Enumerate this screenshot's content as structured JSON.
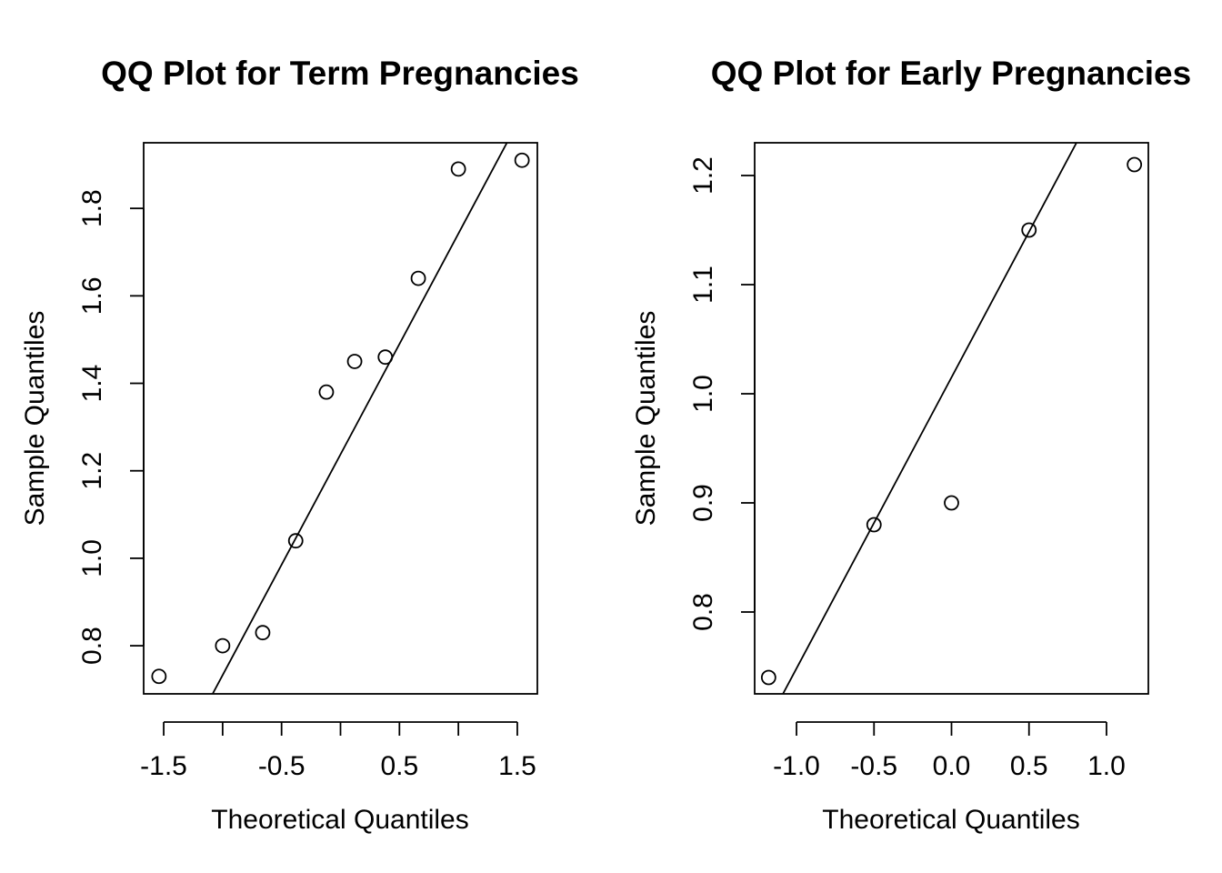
{
  "chart_data": [
    {
      "type": "scatter",
      "subtype": "qq-plot",
      "title": "QQ Plot for Term Pregnancies",
      "xlabel": "Theoretical Quantiles",
      "ylabel": "Sample Quantiles",
      "xlim": [
        -1.67,
        1.67
      ],
      "ylim": [
        0.69,
        1.95
      ],
      "x_ticks": [
        -1.5,
        -1.0,
        -0.5,
        0.0,
        0.5,
        1.0,
        1.5
      ],
      "x_tick_labels": [
        "-1.5",
        "",
        "-0.5",
        "",
        "0.5",
        "",
        "1.5"
      ],
      "y_ticks": [
        0.8,
        1.0,
        1.2,
        1.4,
        1.6,
        1.8
      ],
      "y_tick_labels": [
        "0.8",
        "1.0",
        "1.2",
        "1.4",
        "1.6",
        "1.8"
      ],
      "points": {
        "x": [
          -1.54,
          -1.0,
          -0.66,
          -0.38,
          -0.12,
          0.12,
          0.38,
          0.66,
          1.0,
          1.54
        ],
        "y": [
          0.73,
          0.8,
          0.83,
          1.04,
          1.38,
          1.45,
          1.46,
          1.64,
          1.89,
          1.91
        ]
      },
      "reference_line": {
        "intercept": 1.2375,
        "slope": 0.5047
      },
      "grid": false,
      "legend": "none",
      "marker": "open-circle",
      "color": "#000000"
    },
    {
      "type": "scatter",
      "subtype": "qq-plot",
      "title": "QQ Plot for Early Pregnancies",
      "xlabel": "Theoretical Quantiles",
      "ylabel": "Sample Quantiles",
      "xlim": [
        -1.27,
        1.27
      ],
      "ylim": [
        0.725,
        1.23
      ],
      "x_ticks": [
        -1.0,
        -0.5,
        0.0,
        0.5,
        1.0
      ],
      "x_tick_labels": [
        "-1.0",
        "-0.5",
        "0.0",
        "0.5",
        "1.0"
      ],
      "y_ticks": [
        0.8,
        0.9,
        1.0,
        1.1,
        1.2
      ],
      "y_tick_labels": [
        "0.8",
        "0.9",
        "1.0",
        "1.1",
        "1.2"
      ],
      "points": {
        "x": [
          -1.18,
          -0.5,
          0.0,
          0.5,
          1.18
        ],
        "y": [
          0.74,
          0.88,
          0.9,
          1.15,
          1.21
        ]
      },
      "reference_line": {
        "intercept": 1.015,
        "slope": 0.2667
      },
      "grid": false,
      "legend": "none",
      "marker": "open-circle",
      "color": "#000000"
    }
  ]
}
